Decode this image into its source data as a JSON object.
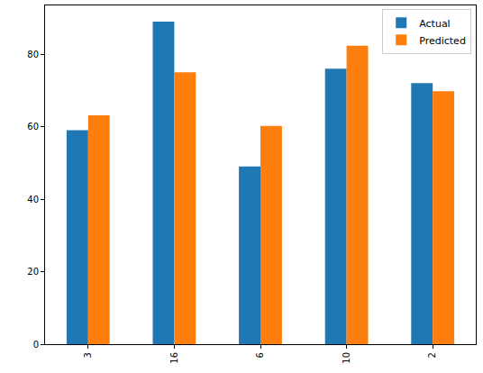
{
  "chart_data": {
    "type": "bar",
    "categories": [
      "3",
      "16",
      "6",
      "10",
      "2"
    ],
    "series": [
      {
        "name": "Actual",
        "color": "#1f77b4",
        "values": [
          59,
          89,
          49,
          76,
          72
        ]
      },
      {
        "name": "Predicted",
        "color": "#ff7f0e",
        "values": [
          63.1,
          75.0,
          60.2,
          82.3,
          69.8
        ]
      }
    ],
    "ylim": [
      0,
      93.45
    ],
    "yticks": [
      0,
      20,
      40,
      60,
      80
    ],
    "grid": false,
    "legend": "upper right"
  }
}
